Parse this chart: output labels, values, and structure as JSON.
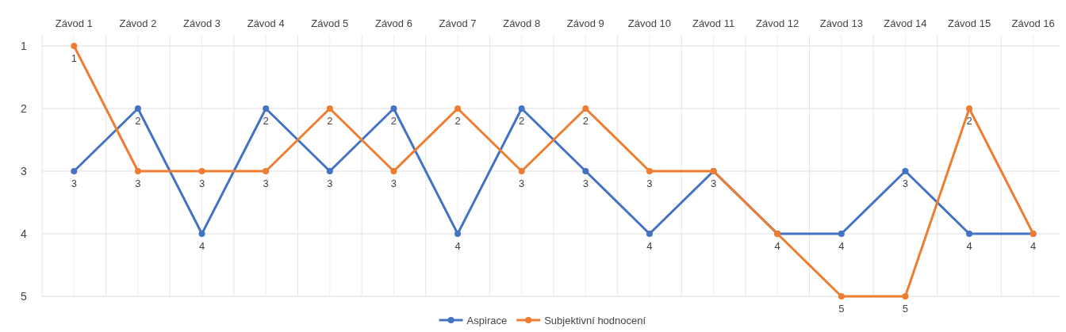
{
  "chart_data": {
    "type": "line",
    "categories": [
      "Závod 1",
      "Závod 2",
      "Závod 3",
      "Závod 4",
      "Závod 5",
      "Závod 6",
      "Závod 7",
      "Závod 8",
      "Závod 9",
      "Závod 10",
      "Závod 11",
      "Závod 12",
      "Závod 13",
      "Závod 14",
      "Závod 15",
      "Závod 16"
    ],
    "series": [
      {
        "name": "Aspirace",
        "color": "#4472c4",
        "values": [
          3,
          2,
          4,
          2,
          3,
          2,
          4,
          2,
          3,
          4,
          3,
          4,
          4,
          3,
          4,
          4
        ]
      },
      {
        "name": "Subjektivní hodnocení",
        "color": "#ed7d31",
        "values": [
          1,
          3,
          3,
          3,
          2,
          3,
          2,
          3,
          2,
          3,
          3,
          4,
          5,
          5,
          2,
          4
        ],
        "value_labels": [
          "1",
          "3",
          "3",
          "3",
          "2",
          "3",
          "2",
          "3",
          "2",
          "3",
          null,
          null,
          "5",
          "5",
          "2",
          null
        ]
      }
    ],
    "ylim": [
      5,
      1
    ],
    "yticks": [
      1,
      2,
      3,
      4,
      5
    ],
    "grid": true,
    "legend": "bottom",
    "marker": "circle",
    "line_style": "solid",
    "data_labels": true
  }
}
